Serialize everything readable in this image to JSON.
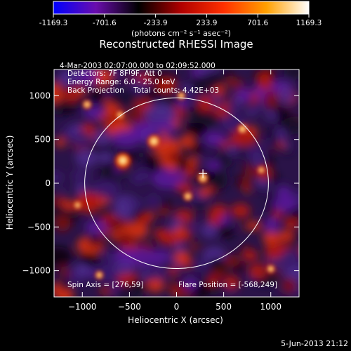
{
  "colorbar": {
    "ticks": [
      "-1169.3",
      "-701.6",
      "-233.9",
      "233.9",
      "701.6",
      "1169.3"
    ],
    "tick_values": [
      -1169.3,
      -701.6,
      -233.9,
      233.9,
      701.6,
      1169.3
    ],
    "range": [
      -1169.3,
      1169.3
    ],
    "units": "(photons cm⁻² s⁻¹ asec⁻²)",
    "colors": [
      "#0000ff",
      "#6a0dad",
      "#000000",
      "#b00000",
      "#ff3000",
      "#ffa000",
      "#ffffff"
    ]
  },
  "title": "Reconstructed RHESSI Image",
  "info": [
    "4-Mar-2003 02:07:00.000 to 02:09:52.000",
    "Detectors: 7F 8F 9F, Att 0",
    "Energy Range: 6.0 - 25.0 keV",
    "Back Projection    Total counts: 4.42E+03"
  ],
  "spin_axis": "Spin Axis = [276,59]",
  "flare_position": "Flare Position = [-568,249]",
  "date_stamp": "5-Jun-2013 21:12",
  "chart_data": {
    "type": "heatmap",
    "title": "Reconstructed RHESSI Image",
    "xlabel": "Heliocentric X (arcsec)",
    "ylabel": "Heliocentric Y (arcsec)",
    "xlim": [
      -1300,
      1300
    ],
    "ylim": [
      -1300,
      1300
    ],
    "x_ticks": [
      -1000,
      -500,
      0,
      500,
      1000
    ],
    "y_ticks": [
      -1000,
      -500,
      0,
      500,
      1000
    ],
    "x_tick_labels": [
      "−1000",
      "−500",
      "0",
      "500",
      "1000"
    ],
    "y_tick_labels": [
      "−1000",
      "−500",
      "0",
      "500",
      "1000"
    ],
    "solar_limb_radius_arcsec": 975,
    "marker": [
      280,
      110
    ],
    "hot_spots": [
      {
        "x": -570,
        "y": 260,
        "v": 1.0
      },
      {
        "x": -240,
        "y": 480,
        "v": 0.85
      },
      {
        "x": 280,
        "y": 60,
        "v": 0.7
      },
      {
        "x": 120,
        "y": -150,
        "v": 0.6
      },
      {
        "x": 700,
        "y": 620,
        "v": 0.65
      },
      {
        "x": -950,
        "y": 900,
        "v": 0.6
      },
      {
        "x": 1000,
        "y": -980,
        "v": 0.55
      },
      {
        "x": -820,
        "y": -1050,
        "v": 0.55
      },
      {
        "x": -600,
        "y": 780,
        "v": 0.5
      },
      {
        "x": 900,
        "y": 150,
        "v": 0.5
      },
      {
        "x": 50,
        "y": 1000,
        "v": 0.55
      },
      {
        "x": -1050,
        "y": -250,
        "v": 0.5
      }
    ]
  }
}
